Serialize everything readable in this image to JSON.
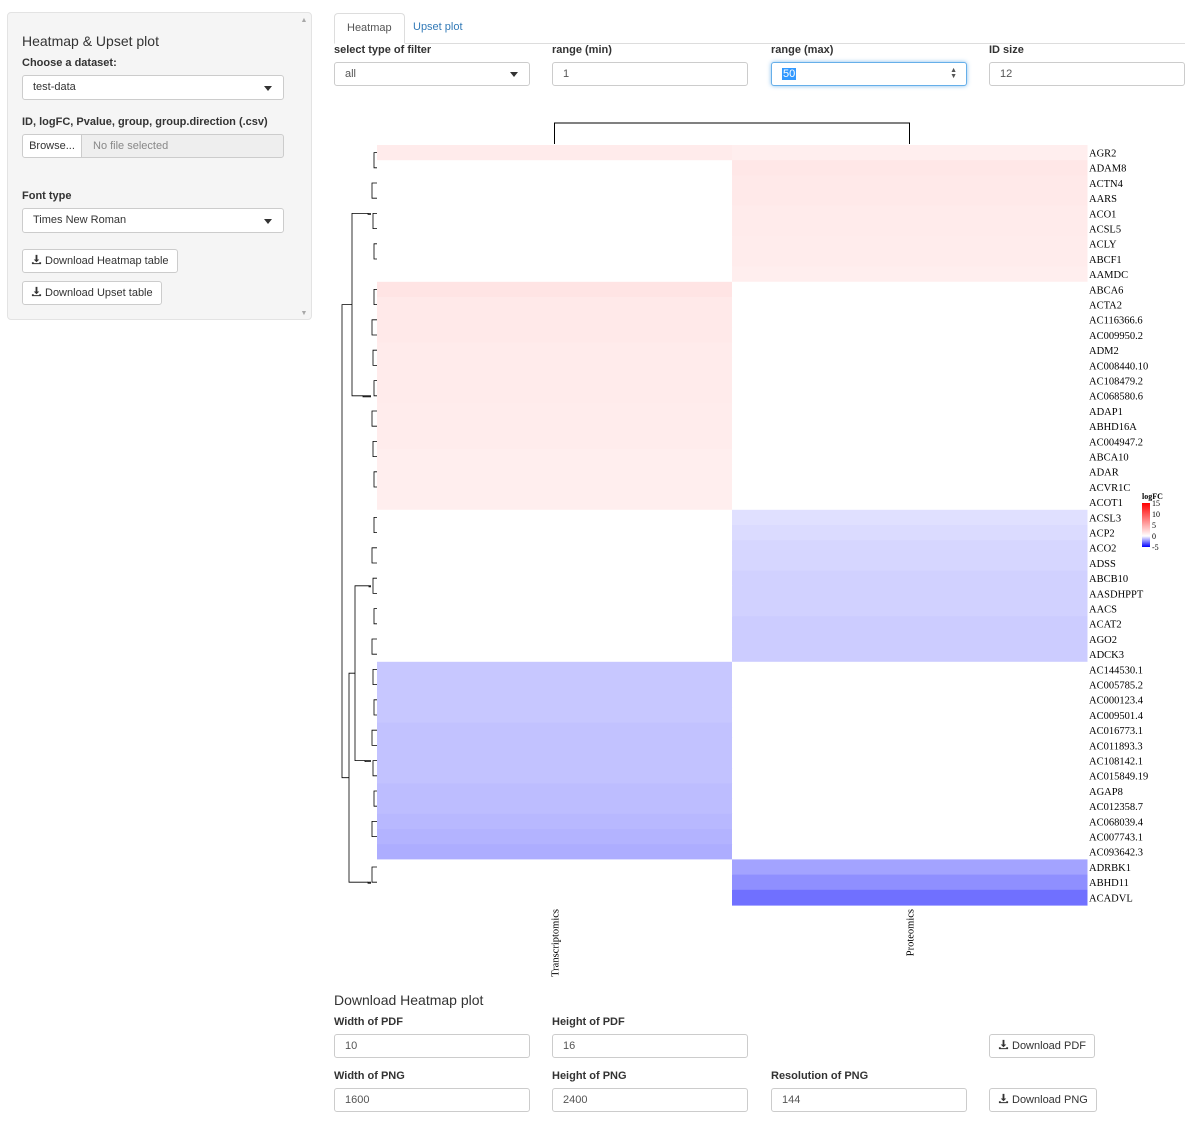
{
  "sidebar": {
    "title": "Heatmap & Upset plot",
    "dataset_label": "Choose a dataset:",
    "dataset_value": "test-data",
    "file_label": "ID, logFC, Pvalue, group, group.direction (.csv)",
    "browse_label": "Browse...",
    "file_placeholder": "No file selected",
    "font_label": "Font type",
    "font_value": "Times New Roman",
    "download_heatmap_table": "Download Heatmap table",
    "download_upset_table": "Download Upset table"
  },
  "tabs": [
    {
      "label": "Heatmap",
      "active": true
    },
    {
      "label": "Upset plot",
      "active": false
    }
  ],
  "filters": {
    "type_label": "select type of filter",
    "type_value": "all",
    "min_label": "range (min)",
    "min_value": "1",
    "max_label": "range (max)",
    "max_value": "50",
    "idsize_label": "ID size",
    "idsize_value": "12"
  },
  "chart_data": {
    "type": "heatmap",
    "columns": [
      "Transcriptomics",
      "Proteomics"
    ],
    "rows": [
      "AGR2",
      "ADAM8",
      "ACTN4",
      "AARS",
      "ACO1",
      "ACSL5",
      "ACLY",
      "ABCF1",
      "AAMDC",
      "ABCA6",
      "ACTA2",
      "AC116366.6",
      "AC009950.2",
      "ADM2",
      "AC008440.10",
      "AC108479.2",
      "AC068580.6",
      "ADAP1",
      "ABHD16A",
      "AC004947.2",
      "ABCA10",
      "ADAR",
      "ACVR1C",
      "ACOT1",
      "ACSL3",
      "ACP2",
      "ACO2",
      "ADSS",
      "ABCB10",
      "AASDHPPT",
      "AACS",
      "ACAT2",
      "AGO2",
      "ADCK3",
      "AC144530.1",
      "AC005785.2",
      "AC000123.4",
      "AC009501.4",
      "AC016773.1",
      "AC011893.3",
      "AC108142.1",
      "AC015849.19",
      "AGAP8",
      "AC012358.7",
      "AC068039.4",
      "AC007743.1",
      "AC093642.3",
      "ADRBK1",
      "ABHD11",
      "ACADVL"
    ],
    "values": [
      [
        1.2,
        1.0
      ],
      [
        null,
        1.4
      ],
      [
        null,
        1.3
      ],
      [
        null,
        1.3
      ],
      [
        null,
        1.2
      ],
      [
        null,
        1.2
      ],
      [
        null,
        1.1
      ],
      [
        null,
        1.1
      ],
      [
        null,
        1.0
      ],
      [
        1.6,
        null
      ],
      [
        1.3,
        null
      ],
      [
        1.3,
        null
      ],
      [
        1.3,
        null
      ],
      [
        1.2,
        null
      ],
      [
        1.2,
        null
      ],
      [
        1.2,
        null
      ],
      [
        1.2,
        null
      ],
      [
        1.1,
        null
      ],
      [
        1.1,
        null
      ],
      [
        1.1,
        null
      ],
      [
        1.0,
        null
      ],
      [
        1.0,
        null
      ],
      [
        1.0,
        null
      ],
      [
        1.0,
        null
      ],
      [
        null,
        -0.6
      ],
      [
        null,
        -0.7
      ],
      [
        null,
        -0.8
      ],
      [
        null,
        -0.8
      ],
      [
        null,
        -0.9
      ],
      [
        null,
        -0.9
      ],
      [
        null,
        -0.9
      ],
      [
        null,
        -1.0
      ],
      [
        null,
        -1.0
      ],
      [
        null,
        -1.0
      ],
      [
        -1.1,
        null
      ],
      [
        -1.1,
        null
      ],
      [
        -1.1,
        null
      ],
      [
        -1.1,
        null
      ],
      [
        -1.2,
        null
      ],
      [
        -1.2,
        null
      ],
      [
        -1.2,
        null
      ],
      [
        -1.2,
        null
      ],
      [
        -1.3,
        null
      ],
      [
        -1.3,
        null
      ],
      [
        -1.4,
        null
      ],
      [
        -1.5,
        null
      ],
      [
        -1.6,
        null
      ],
      [
        null,
        -1.8
      ],
      [
        null,
        -2.2
      ],
      [
        null,
        -2.8
      ]
    ],
    "legend": {
      "title": "logFC",
      "ticks": [
        15,
        10,
        5,
        0,
        -5
      ],
      "range": [
        -5,
        15
      ]
    },
    "colors": {
      "high": "#ff0000",
      "mid": "#ffffff",
      "low": "#0000ff"
    }
  },
  "download_section": {
    "title": "Download Heatmap plot",
    "pdf_width_label": "Width of PDF",
    "pdf_width_value": "10",
    "pdf_height_label": "Height of PDF",
    "pdf_height_value": "16",
    "download_pdf": "Download PDF",
    "png_width_label": "Width of PNG",
    "png_width_value": "1600",
    "png_height_label": "Height of PNG",
    "png_height_value": "2400",
    "png_res_label": "Resolution of PNG",
    "png_res_value": "144",
    "download_png": "Download PNG"
  }
}
